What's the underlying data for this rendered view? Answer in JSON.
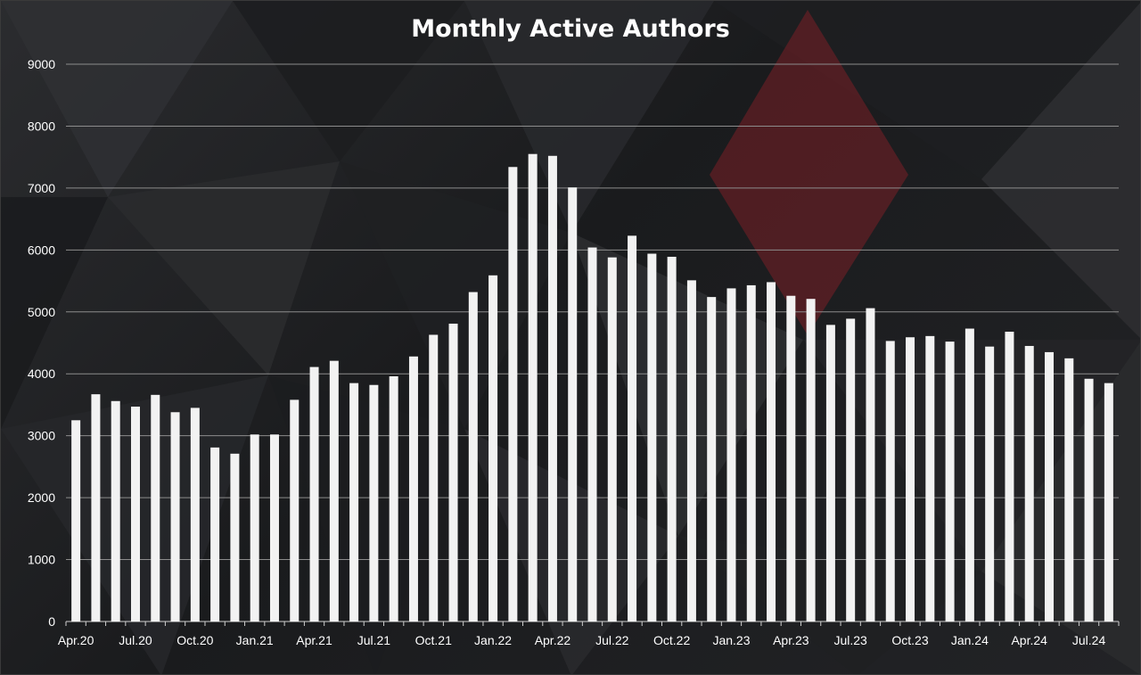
{
  "chart_data": {
    "type": "bar",
    "title": "Monthly Active Authors",
    "xlabel": "",
    "ylabel": "",
    "ylim": [
      0,
      9000
    ],
    "yticks": [
      "0",
      "1000",
      "2000",
      "3000",
      "4000",
      "5000",
      "6000",
      "7000",
      "8000",
      "9000"
    ],
    "grid": true,
    "legend": "none",
    "bar_color": "#f2f2f2",
    "categories": [
      "Apr.20",
      "May.20",
      "Jun.20",
      "Jul.20",
      "Aug.20",
      "Sep.20",
      "Oct.20",
      "Nov.20",
      "Dec.20",
      "Jan.21",
      "Feb.21",
      "Mar.21",
      "Apr.21",
      "May.21",
      "Jun.21",
      "Jul.21",
      "Aug.21",
      "Sep.21",
      "Oct.21",
      "Nov.21",
      "Dec.21",
      "Jan.22",
      "Feb.22",
      "Mar.22",
      "Apr.22",
      "May.22",
      "Jun.22",
      "Jul.22",
      "Aug.22",
      "Sep.22",
      "Oct.22",
      "Nov.22",
      "Dec.22",
      "Jan.23",
      "Feb.23",
      "Mar.23",
      "Apr.23",
      "May.23",
      "Jun.23",
      "Jul.23",
      "Aug.23",
      "Sep.23",
      "Oct.23",
      "Nov.23",
      "Dec.23",
      "Jan.24",
      "Feb.24",
      "Mar.24",
      "Apr.24",
      "May.24",
      "Jun.24",
      "Jul.24",
      "Aug.24"
    ],
    "x_tick_labels": [
      "Apr.20",
      "Jul.20",
      "Oct.20",
      "Jan.21",
      "Apr.21",
      "Jul.21",
      "Oct.21",
      "Jan.22",
      "Apr.22",
      "Jul.22",
      "Oct.22",
      "Jan.23",
      "Apr.23",
      "Jul.23",
      "Oct.23",
      "Jan.24",
      "Apr.24",
      "Jul.24"
    ],
    "values": [
      3250,
      3670,
      3560,
      3470,
      3660,
      3380,
      3450,
      2810,
      2710,
      3020,
      3020,
      3580,
      4110,
      4210,
      3850,
      3820,
      3960,
      4280,
      4630,
      4810,
      5320,
      5590,
      7340,
      7550,
      7520,
      7010,
      6040,
      5880,
      6230,
      5940,
      5890,
      5510,
      5240,
      5380,
      5430,
      5480,
      5260,
      5210,
      4790,
      4890,
      5060,
      4530,
      4590,
      4610,
      4520,
      4730,
      4440,
      4680,
      4450,
      4350,
      4250,
      3920,
      3850
    ]
  }
}
